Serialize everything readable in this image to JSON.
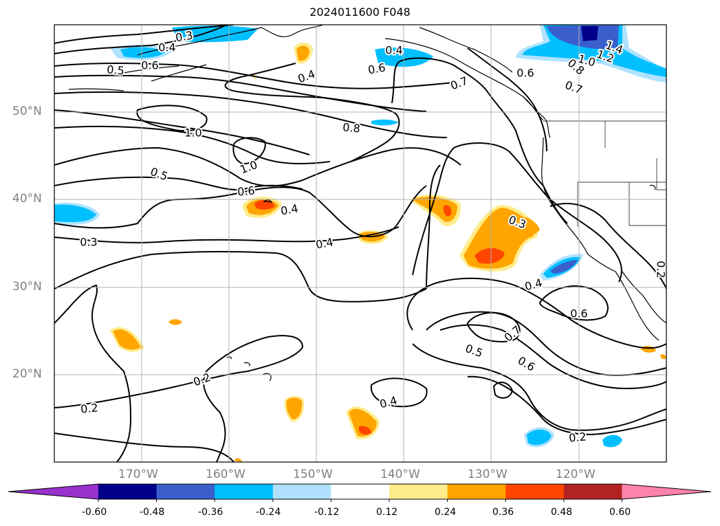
{
  "title": "2024011600 F048",
  "lat_labels": [
    "50°N",
    "40°N",
    "30°N",
    "20°N"
  ],
  "lon_labels": [
    "170°W",
    "160°W",
    "150°W",
    "140°W",
    "130°W",
    "120°W"
  ],
  "contour_labels": [
    "0.3",
    "0.4",
    "0.5",
    "0.6",
    "0.4",
    "0.6",
    "0.4",
    "0.6",
    "0.7",
    "1.4",
    "1.2",
    "1.0",
    "0.8",
    "0.7",
    "1.0",
    "0.8",
    "1.0",
    "0.5",
    "0.6",
    "0.4",
    "0.3",
    "0.3",
    "0.4",
    "0.4",
    "0.6",
    "0.7",
    "0.5",
    "0.6",
    "0.2",
    "0.2",
    "0.4",
    "0.2",
    "0.2"
  ],
  "colorbar": {
    "ticks": [
      "-0.60",
      "-0.48",
      "-0.36",
      "-0.24",
      "-0.12",
      "0.12",
      "0.24",
      "0.36",
      "0.48",
      "0.60"
    ],
    "colors": [
      "#9932cc",
      "#00008b",
      "#3a5fcd",
      "#00bfff",
      "#b0e2ff",
      "#ffffff",
      "#ffec8b",
      "#ffa500",
      "#ff4500",
      "#b22222",
      "#ff82ab"
    ]
  }
}
